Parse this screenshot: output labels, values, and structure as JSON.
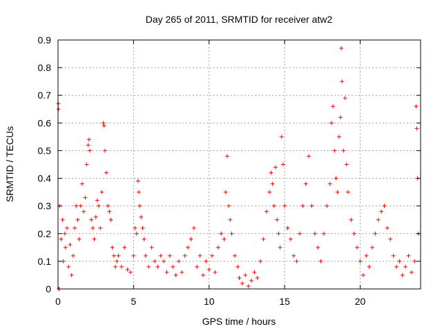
{
  "chart_data": {
    "type": "scatter",
    "title": "Day 265 of 2011, SRMTID for receiver atw2",
    "xlabel": "GPS time / hours",
    "ylabel": "SRMTID / TECUs",
    "xlim": [
      0,
      24
    ],
    "ylim": [
      0,
      0.9
    ],
    "xticks": [
      0,
      5,
      10,
      15,
      20
    ],
    "xtick_labels": [
      "0",
      "5",
      "10",
      "15",
      "20"
    ],
    "yticks": [
      0,
      0.1,
      0.2,
      0.3,
      0.4,
      0.5,
      0.6,
      0.7,
      0.8,
      0.9
    ],
    "ytick_labels": [
      "0",
      "0.1",
      "0.2",
      "0.3",
      "0.4",
      "0.5",
      "0.6",
      "0.7",
      "0.8",
      "0.9"
    ],
    "grid": true,
    "marker": "+",
    "series": [
      {
        "name": "atw2",
        "color": "#ff0000",
        "points": [
          [
            0.02,
            0.67
          ],
          [
            0.03,
            0.65
          ],
          [
            0.05,
            0.0
          ],
          [
            0.08,
            0.0
          ],
          [
            0.1,
            0.3
          ],
          [
            0.2,
            0.18
          ],
          [
            0.3,
            0.25
          ],
          [
            0.35,
            0.1
          ],
          [
            0.45,
            0.2
          ],
          [
            0.5,
            0.15
          ],
          [
            0.6,
            0.22
          ],
          [
            0.7,
            0.08
          ],
          [
            0.8,
            0.16
          ],
          [
            0.9,
            0.05
          ],
          [
            1.0,
            0.12
          ],
          [
            1.1,
            0.22
          ],
          [
            1.2,
            0.3
          ],
          [
            1.3,
            0.25
          ],
          [
            1.4,
            0.18
          ],
          [
            1.5,
            0.3
          ],
          [
            1.6,
            0.38
          ],
          [
            1.7,
            0.28
          ],
          [
            1.8,
            0.33
          ],
          [
            1.9,
            0.45
          ],
          [
            2.0,
            0.52
          ],
          [
            2.05,
            0.54
          ],
          [
            2.1,
            0.5
          ],
          [
            2.2,
            0.25
          ],
          [
            2.3,
            0.22
          ],
          [
            2.4,
            0.18
          ],
          [
            2.5,
            0.26
          ],
          [
            2.6,
            0.32
          ],
          [
            2.7,
            0.3
          ],
          [
            2.8,
            0.22
          ],
          [
            2.9,
            0.35
          ],
          [
            3.0,
            0.6
          ],
          [
            3.05,
            0.59
          ],
          [
            3.1,
            0.5
          ],
          [
            3.2,
            0.42
          ],
          [
            3.3,
            0.3
          ],
          [
            3.4,
            0.28
          ],
          [
            3.5,
            0.25
          ],
          [
            3.6,
            0.15
          ],
          [
            3.7,
            0.12
          ],
          [
            3.8,
            0.08
          ],
          [
            3.9,
            0.1
          ],
          [
            4.0,
            0.12
          ],
          [
            4.2,
            0.08
          ],
          [
            4.4,
            0.15
          ],
          [
            4.6,
            0.07
          ],
          [
            4.8,
            0.06
          ],
          [
            5.0,
            0.12
          ],
          [
            5.1,
            0.22
          ],
          [
            5.2,
            0.2
          ],
          [
            5.3,
            0.39
          ],
          [
            5.35,
            0.35
          ],
          [
            5.4,
            0.3
          ],
          [
            5.5,
            0.26
          ],
          [
            5.6,
            0.22
          ],
          [
            5.7,
            0.18
          ],
          [
            5.8,
            0.12
          ],
          [
            6.0,
            0.08
          ],
          [
            6.2,
            0.15
          ],
          [
            6.4,
            0.1
          ],
          [
            6.6,
            0.08
          ],
          [
            6.8,
            0.12
          ],
          [
            7.0,
            0.1
          ],
          [
            7.2,
            0.06
          ],
          [
            7.4,
            0.12
          ],
          [
            7.6,
            0.08
          ],
          [
            7.8,
            0.05
          ],
          [
            8.0,
            0.1
          ],
          [
            8.2,
            0.06
          ],
          [
            8.4,
            0.12
          ],
          [
            8.6,
            0.15
          ],
          [
            8.8,
            0.18
          ],
          [
            9.0,
            0.22
          ],
          [
            9.2,
            0.08
          ],
          [
            9.4,
            0.12
          ],
          [
            9.6,
            0.05
          ],
          [
            9.8,
            0.1
          ],
          [
            10.0,
            0.07
          ],
          [
            10.2,
            0.12
          ],
          [
            10.4,
            0.06
          ],
          [
            10.6,
            0.15
          ],
          [
            10.8,
            0.2
          ],
          [
            11.0,
            0.18
          ],
          [
            11.1,
            0.35
          ],
          [
            11.2,
            0.48
          ],
          [
            11.3,
            0.3
          ],
          [
            11.4,
            0.25
          ],
          [
            11.5,
            0.2
          ],
          [
            11.7,
            0.12
          ],
          [
            11.9,
            0.08
          ],
          [
            12.0,
            0.04
          ],
          [
            12.2,
            0.02
          ],
          [
            12.4,
            0.05
          ],
          [
            12.6,
            0.01
          ],
          [
            12.8,
            0.03
          ],
          [
            13.0,
            0.06
          ],
          [
            13.2,
            0.04
          ],
          [
            13.4,
            0.1
          ],
          [
            13.6,
            0.18
          ],
          [
            13.8,
            0.28
          ],
          [
            14.0,
            0.35
          ],
          [
            14.1,
            0.42
          ],
          [
            14.2,
            0.38
          ],
          [
            14.3,
            0.3
          ],
          [
            14.4,
            0.44
          ],
          [
            14.5,
            0.25
          ],
          [
            14.6,
            0.2
          ],
          [
            14.7,
            0.15
          ],
          [
            14.8,
            0.55
          ],
          [
            14.9,
            0.45
          ],
          [
            15.0,
            0.3
          ],
          [
            15.2,
            0.22
          ],
          [
            15.4,
            0.18
          ],
          [
            15.6,
            0.12
          ],
          [
            15.8,
            0.1
          ],
          [
            16.0,
            0.2
          ],
          [
            16.2,
            0.3
          ],
          [
            16.4,
            0.38
          ],
          [
            16.6,
            0.48
          ],
          [
            16.8,
            0.3
          ],
          [
            17.0,
            0.2
          ],
          [
            17.2,
            0.15
          ],
          [
            17.4,
            0.1
          ],
          [
            17.6,
            0.2
          ],
          [
            17.8,
            0.3
          ],
          [
            18.0,
            0.38
          ],
          [
            18.1,
            0.6
          ],
          [
            18.2,
            0.66
          ],
          [
            18.3,
            0.5
          ],
          [
            18.4,
            0.4
          ],
          [
            18.5,
            0.35
          ],
          [
            18.6,
            0.55
          ],
          [
            18.7,
            0.62
          ],
          [
            18.75,
            0.87
          ],
          [
            18.8,
            0.75
          ],
          [
            18.9,
            0.5
          ],
          [
            19.0,
            0.69
          ],
          [
            19.1,
            0.45
          ],
          [
            19.2,
            0.35
          ],
          [
            19.4,
            0.25
          ],
          [
            19.6,
            0.2
          ],
          [
            19.8,
            0.15
          ],
          [
            20.0,
            0.1
          ],
          [
            20.2,
            0.05
          ],
          [
            20.4,
            0.12
          ],
          [
            20.6,
            0.08
          ],
          [
            20.8,
            0.15
          ],
          [
            21.0,
            0.2
          ],
          [
            21.2,
            0.25
          ],
          [
            21.4,
            0.28
          ],
          [
            21.6,
            0.3
          ],
          [
            21.8,
            0.22
          ],
          [
            22.0,
            0.18
          ],
          [
            22.2,
            0.12
          ],
          [
            22.4,
            0.08
          ],
          [
            22.6,
            0.1
          ],
          [
            22.8,
            0.05
          ],
          [
            23.0,
            0.08
          ],
          [
            23.2,
            0.12
          ],
          [
            23.4,
            0.06
          ],
          [
            23.6,
            0.1
          ],
          [
            23.7,
            0.66
          ],
          [
            23.75,
            0.58
          ],
          [
            23.8,
            0.4
          ],
          [
            23.85,
            0.2
          ]
        ]
      }
    ]
  }
}
